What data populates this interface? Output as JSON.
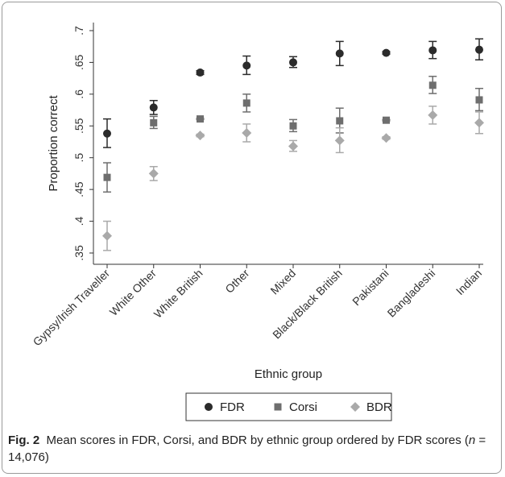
{
  "chart_data": {
    "type": "scatter",
    "title": "",
    "xlabel": "Ethnic group",
    "ylabel": "Proportion correct",
    "ylim": [
      0.35,
      0.7
    ],
    "yticks": [
      0.35,
      0.4,
      0.45,
      0.5,
      0.55,
      0.6,
      0.65,
      0.7
    ],
    "ytick_labels": [
      ".35",
      ".4",
      ".45",
      ".5",
      ".55",
      ".6",
      ".65",
      ".7"
    ],
    "categories": [
      "Gypsy/Irish Traveller",
      "White Other",
      "White British",
      "Other",
      "Mixed",
      "Black/Black British",
      "Pakistani",
      "Bangladeshi",
      "Indian"
    ],
    "series": [
      {
        "name": "FDR",
        "marker": "circle",
        "color": "#2b2b2b",
        "values": [
          0.538,
          0.579,
          0.634,
          0.645,
          0.65,
          0.664,
          0.665,
          0.669,
          0.67
        ],
        "ci_low": [
          0.516,
          0.568,
          0.631,
          0.631,
          0.642,
          0.645,
          0.663,
          0.656,
          0.654
        ],
        "ci_high": [
          0.561,
          0.59,
          0.637,
          0.66,
          0.659,
          0.683,
          0.667,
          0.683,
          0.687
        ]
      },
      {
        "name": "Corsi",
        "marker": "square",
        "color": "#6e6e6e",
        "values": [
          0.469,
          0.555,
          0.561,
          0.586,
          0.55,
          0.558,
          0.559,
          0.614,
          0.591
        ],
        "ci_low": [
          0.446,
          0.546,
          0.56,
          0.572,
          0.541,
          0.539,
          0.558,
          0.601,
          0.574
        ],
        "ci_high": [
          0.492,
          0.565,
          0.562,
          0.6,
          0.56,
          0.578,
          0.56,
          0.628,
          0.609
        ]
      },
      {
        "name": "BDR",
        "marker": "diamond",
        "color": "#a9a9a9",
        "values": [
          0.377,
          0.475,
          0.535,
          0.539,
          0.518,
          0.527,
          0.531,
          0.567,
          0.555
        ],
        "ci_low": [
          0.354,
          0.464,
          0.533,
          0.525,
          0.51,
          0.508,
          0.529,
          0.553,
          0.538
        ],
        "ci_high": [
          0.4,
          0.486,
          0.537,
          0.553,
          0.527,
          0.547,
          0.533,
          0.581,
          0.572
        ]
      }
    ],
    "legend_position": "bottom",
    "grid": false
  },
  "caption": {
    "label": "Fig. 2",
    "text_part1": "Mean scores in FDR, Corsi, and BDR by ethnic group ordered by FDR scores (",
    "n_symbol": "n",
    "text_part2": " = 14,076)"
  }
}
